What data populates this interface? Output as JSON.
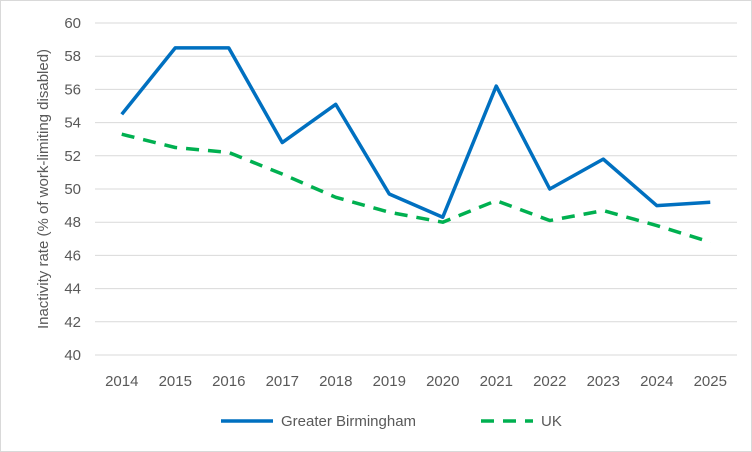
{
  "chart_data": {
    "type": "line",
    "title": "",
    "xlabel": "",
    "ylabel": "Inactivity rate (% of work-limiting disabled)",
    "ylim": [
      40,
      60
    ],
    "yticks": [
      40,
      42,
      44,
      46,
      48,
      50,
      52,
      54,
      56,
      58,
      60
    ],
    "grid": true,
    "legend_position": "bottom",
    "categories": [
      "2014",
      "2015",
      "2016",
      "2017",
      "2018",
      "2019",
      "2020",
      "2021",
      "2022",
      "2023",
      "2024",
      "2025"
    ],
    "series": [
      {
        "name": "Greater Birmingham",
        "color": "#0070C0",
        "dash": false,
        "values": [
          54.5,
          58.5,
          58.5,
          52.8,
          55.1,
          49.7,
          48.3,
          56.2,
          50.0,
          51.8,
          49.0,
          49.2
        ]
      },
      {
        "name": "UK",
        "color": "#00B050",
        "dash": true,
        "values": [
          53.3,
          52.5,
          52.2,
          50.9,
          49.5,
          48.6,
          48.0,
          49.3,
          48.1,
          48.7,
          47.8,
          46.8
        ]
      }
    ]
  }
}
